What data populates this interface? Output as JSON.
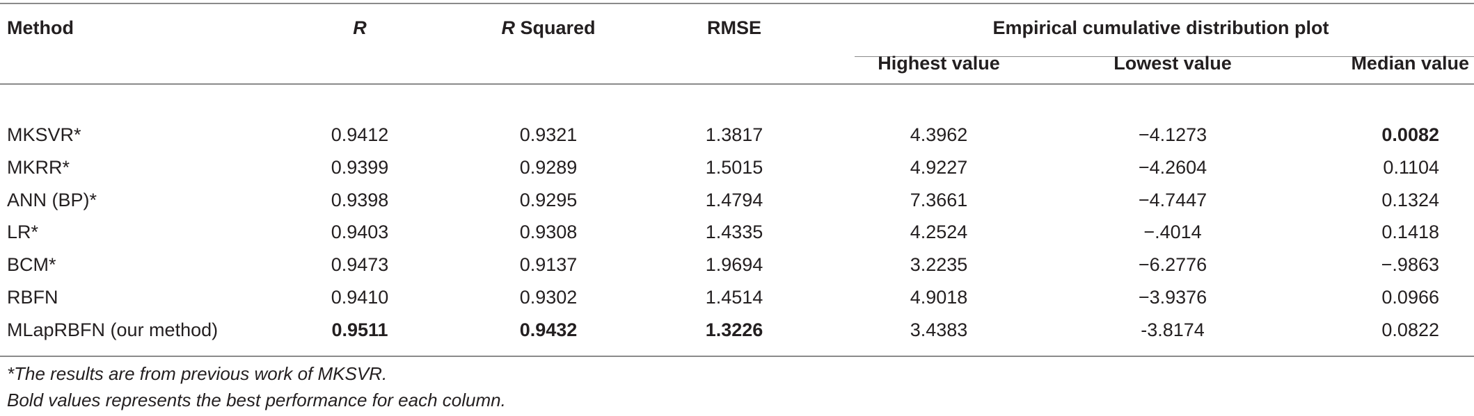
{
  "table": {
    "headers": {
      "method": "Method",
      "r": "R",
      "r_squared_prefix": "R",
      "r_squared_suffix": " Squared",
      "rmse": "RMSE",
      "ecdf": "Empirical cumulative distribution plot",
      "highest": "Highest value",
      "lowest": "Lowest value",
      "median": "Median value"
    },
    "rows": [
      {
        "method": "MKSVR*",
        "r": "0.9412",
        "r2": "0.9321",
        "rmse": "1.3817",
        "highest": "4.3962",
        "lowest": "−4.1273",
        "median": "0.0082"
      },
      {
        "method": "MKRR*",
        "r": "0.9399",
        "r2": "0.9289",
        "rmse": "1.5015",
        "highest": "4.9227",
        "lowest": "−4.2604",
        "median": "0.1104"
      },
      {
        "method": "ANN (BP)*",
        "r": "0.9398",
        "r2": "0.9295",
        "rmse": "1.4794",
        "highest": "7.3661",
        "lowest": "−4.7447",
        "median": "0.1324"
      },
      {
        "method": "LR*",
        "r": "0.9403",
        "r2": "0.9308",
        "rmse": "1.4335",
        "highest": "4.2524",
        "lowest": "−.4014",
        "median": "0.1418"
      },
      {
        "method": "BCM*",
        "r": "0.9473",
        "r2": "0.9137",
        "rmse": "1.9694",
        "highest": "3.2235",
        "lowest": "−6.2776",
        "median": "−.9863"
      },
      {
        "method": "RBFN",
        "r": "0.9410",
        "r2": "0.9302",
        "rmse": "1.4514",
        "highest": "4.9018",
        "lowest": "−3.9376",
        "median": "0.0966"
      },
      {
        "method": "MLapRBFN (our method)",
        "r": "0.9511",
        "r2": "0.9432",
        "rmse": "1.3226",
        "highest": "3.4383",
        "lowest": "-3.8174",
        "median": "0.0822"
      }
    ],
    "footnotes": [
      "*The results are from previous work of MKSVR.",
      "Bold values represents the best performance for each column."
    ]
  }
}
